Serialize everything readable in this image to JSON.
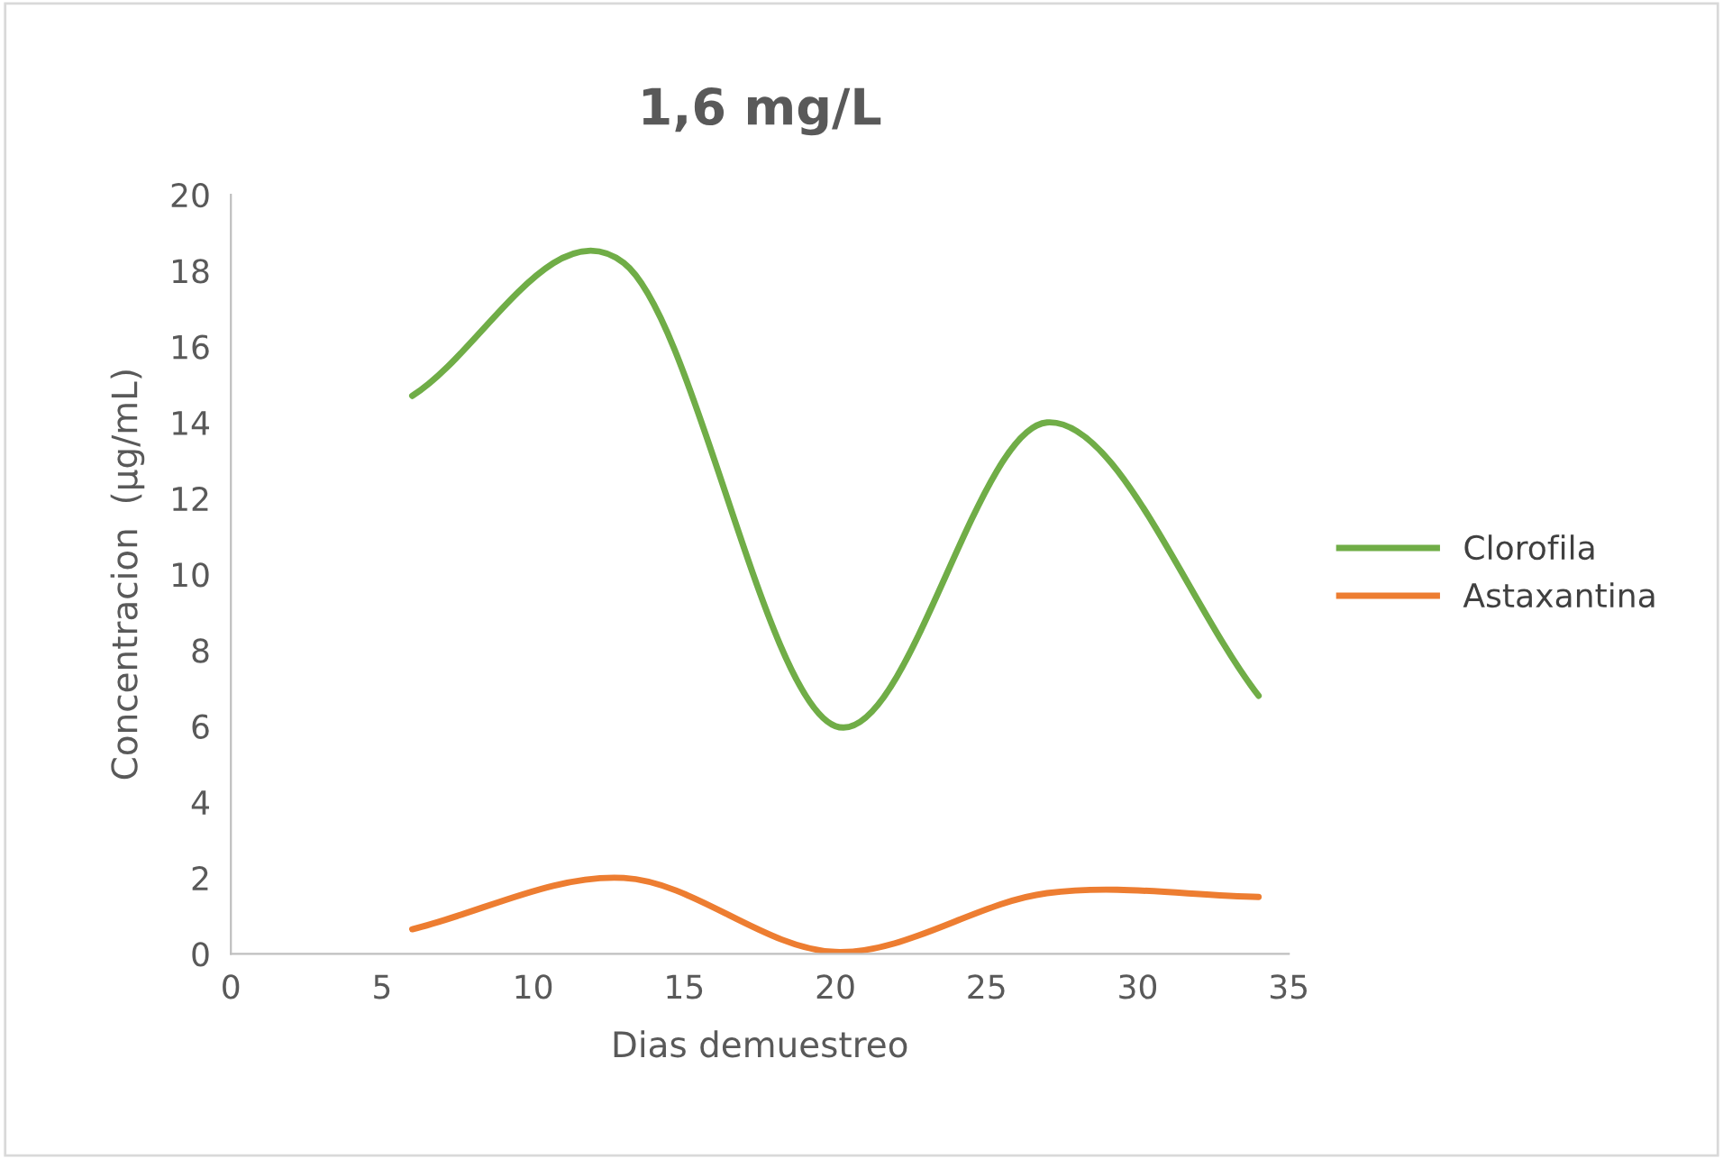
{
  "chart_data": {
    "type": "line",
    "title": "1,6 mg/L",
    "xlabel": "Dias demuestreo",
    "ylabel": "Concentracion  (µg/mL)",
    "x": [
      6,
      13,
      20,
      27,
      34
    ],
    "series": [
      {
        "name": "Clorofila",
        "color": "#70ad47",
        "values": [
          14.7,
          18.2,
          6.0,
          14.0,
          6.8
        ]
      },
      {
        "name": "Astaxantina",
        "color": "#ed7d31",
        "values": [
          0.65,
          2.0,
          0.05,
          1.6,
          1.5
        ]
      }
    ],
    "xlim": [
      0,
      35
    ],
    "xticks": [
      0,
      5,
      10,
      15,
      20,
      25,
      30,
      35
    ],
    "ylim": [
      0,
      20
    ],
    "yticks": [
      0,
      2,
      4,
      6,
      8,
      10,
      12,
      14,
      16,
      18,
      20
    ],
    "grid": false,
    "legend": "right",
    "marker": "none",
    "line_style": "solid"
  }
}
